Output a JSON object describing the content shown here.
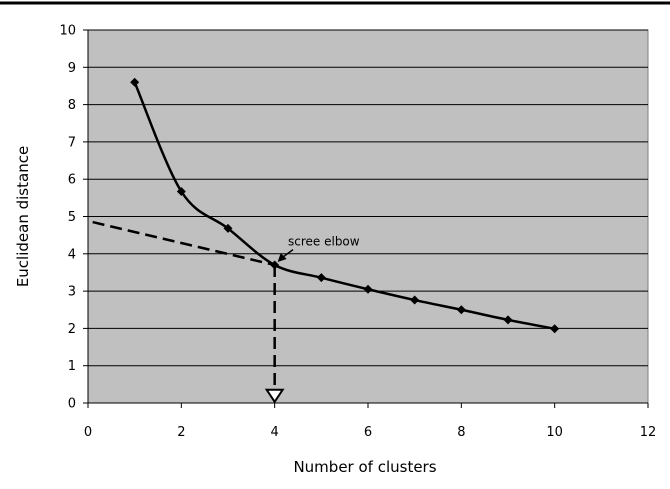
{
  "chart_data": {
    "type": "scatter",
    "title": "",
    "xlabel": "Number of clusters",
    "ylabel": "Euclidean distance",
    "xlim": [
      0,
      12
    ],
    "ylim": [
      0,
      10
    ],
    "xticks": [
      0,
      2,
      4,
      6,
      8,
      10,
      12
    ],
    "yticks": [
      0,
      1,
      2,
      3,
      4,
      5,
      6,
      7,
      8,
      9,
      10
    ],
    "grid": "horizontal",
    "series": [
      {
        "x": [
          1,
          2,
          3,
          4,
          5,
          6,
          7,
          8,
          9,
          10
        ],
        "y": [
          8.6,
          5.67,
          4.68,
          3.7,
          3.36,
          3.05,
          2.76,
          2.5,
          2.23,
          1.99
        ],
        "line": "smooth",
        "marker": "diamond"
      }
    ],
    "trend_line": {
      "x": [
        0.1,
        4.0
      ],
      "y": [
        4.85,
        3.7
      ],
      "style": "dashed"
    },
    "drop_line": {
      "x": [
        4,
        4
      ],
      "y": [
        3.7,
        0.3
      ],
      "style": "dashed",
      "arrow": "down-triangle"
    },
    "annotation": {
      "text": "scree elbow",
      "x": 4.35,
      "y": 4.3,
      "points_to": [
        4.0,
        3.7
      ]
    },
    "colors": {
      "plot_background": "#c0c0c0",
      "series": "#000000",
      "grid": "#000000"
    }
  }
}
